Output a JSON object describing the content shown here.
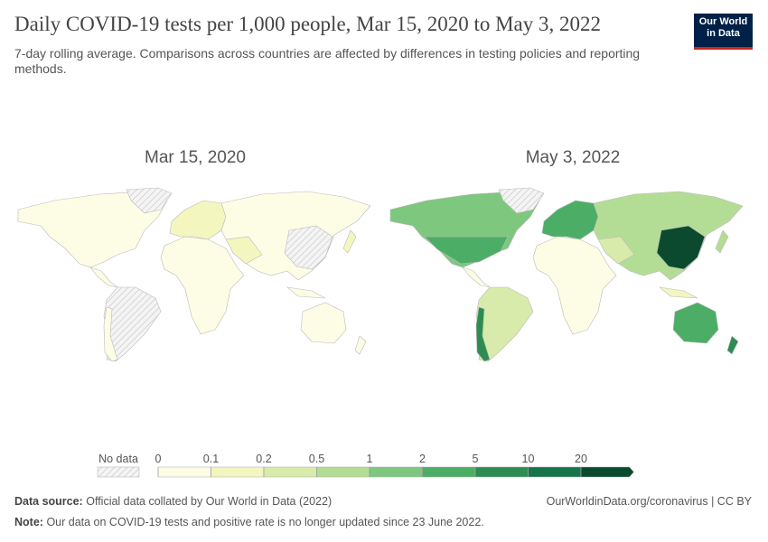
{
  "header": {
    "title": "Daily COVID-19 tests per 1,000 people, Mar 15, 2020 to May 3, 2022",
    "subtitle": "7-day rolling average. Comparisons across countries are affected by differences in testing policies and reporting methods.",
    "logo": [
      "Our World",
      "in Data"
    ]
  },
  "maps": [
    {
      "title": "Mar 15, 2020"
    },
    {
      "title": "May 3, 2022"
    }
  ],
  "legend": {
    "no_data": "No data",
    "ticks": [
      0,
      0.1,
      0.2,
      0.5,
      1,
      2,
      5,
      10,
      20
    ],
    "colors": [
      "#fdfde6",
      "#f3f6bf",
      "#d8ebaa",
      "#b3dd95",
      "#7ec77f",
      "#4cae66",
      "#2e8c52",
      "#15744a",
      "#0b4a2f"
    ]
  },
  "footer": {
    "source_label": "Data source:",
    "source": "Official data collated by Our World in Data (2022)",
    "url": "OurWorldinData.org/coronavirus | CC BY",
    "note_label": "Note:",
    "note": "Our data on COVID-19 tests and positive rate is no longer updated since 23 June 2022."
  }
}
